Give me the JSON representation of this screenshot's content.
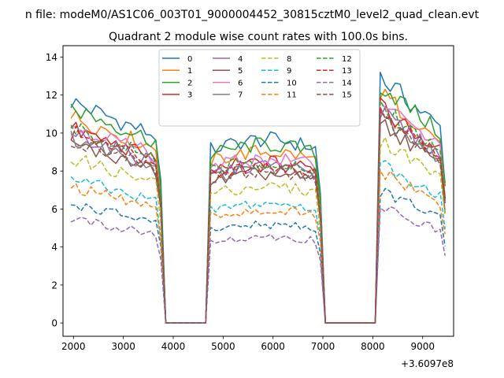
{
  "chart_data": {
    "type": "line",
    "suptitle": "n file: modeM0/AS1C06_003T01_9000004452_30815cztM0_level2_quad_clean.evt",
    "title": "Quadrant 2 module wise count rates with 100.0s bins.",
    "xlabel": "",
    "ylabel": "",
    "x_offset_label": "+3.6097e8",
    "xlim": [
      1790,
      9620
    ],
    "ylim": [
      -0.7,
      14.6
    ],
    "xticks": [
      2000,
      3000,
      4000,
      5000,
      6000,
      7000,
      8000,
      9000
    ],
    "yticks": [
      0,
      2,
      4,
      6,
      8,
      10,
      12,
      14
    ],
    "segments": [
      {
        "start": 1950,
        "n": 19
      },
      {
        "start": 4750,
        "n": 23
      },
      {
        "start": 8150,
        "n": 14
      }
    ],
    "gaps": [
      [
        3850,
        4650
      ],
      [
        7050,
        8050
      ]
    ],
    "legend_loc": "upper center",
    "legend_ncol": 4,
    "series": [
      {
        "name": "0",
        "color": "#1f77b4",
        "dash": "solid",
        "base": 10.6
      },
      {
        "name": "1",
        "color": "#ff7f0e",
        "dash": "solid",
        "base": 9.9
      },
      {
        "name": "2",
        "color": "#2ca02c",
        "dash": "solid",
        "base": 10.3
      },
      {
        "name": "3",
        "color": "#d62728",
        "dash": "solid",
        "base": 9.3
      },
      {
        "name": "4",
        "color": "#9467bd",
        "dash": "solid",
        "base": 9.1
      },
      {
        "name": "5",
        "color": "#8c564b",
        "dash": "solid",
        "base": 8.6
      },
      {
        "name": "6",
        "color": "#e377c2",
        "dash": "solid",
        "base": 9.5
      },
      {
        "name": "7",
        "color": "#7f7f7f",
        "dash": "solid",
        "base": 8.9
      },
      {
        "name": "8",
        "color": "#bcbd22",
        "dash": "dashed",
        "base": 7.9
      },
      {
        "name": "9",
        "color": "#17becf",
        "dash": "dashed",
        "base": 6.9
      },
      {
        "name": "10",
        "color": "#1f77b4",
        "dash": "dashed",
        "base": 5.7
      },
      {
        "name": "11",
        "color": "#ff7f0e",
        "dash": "dashed",
        "base": 6.5
      },
      {
        "name": "12",
        "color": "#2ca02c",
        "dash": "dashed",
        "base": 9.3
      },
      {
        "name": "13",
        "color": "#d62728",
        "dash": "dashed",
        "base": 9.1
      },
      {
        "name": "14",
        "color": "#9467bd",
        "dash": "dashed",
        "base": 5.0
      },
      {
        "name": "15",
        "color": "#8c564b",
        "dash": "dashed",
        "base": 8.8
      }
    ]
  }
}
